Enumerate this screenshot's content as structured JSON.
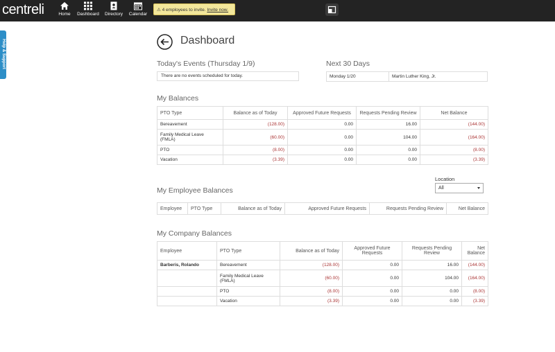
{
  "nav": {
    "logo": "centreli",
    "items": [
      "Home",
      "Dashboard",
      "Directory",
      "Calendar"
    ]
  },
  "notice": {
    "text": "4 employees to invite.",
    "link": "Invite now."
  },
  "side_tab": "Help & Support",
  "page_title": "Dashboard",
  "todays_events": {
    "title": "Today's Events (Thursday 1/9)",
    "message": "There are no events scheduled for today."
  },
  "next_30_days": {
    "title": "Next 30 Days",
    "rows": [
      [
        "Monday 1/20",
        "Martin Luther King, Jr."
      ]
    ]
  },
  "my_balances": {
    "title": "My Balances",
    "columns": [
      "PTO Type",
      "Balance as of Today",
      "Approved Future Requests",
      "Requests Pending Review",
      "Net Balance"
    ],
    "rows": [
      [
        "Bereavement",
        "(128.00)",
        "0.00",
        "16.00",
        "(144.00)"
      ],
      [
        "Family Medical Leave (FMLA)",
        "(60.00)",
        "0.00",
        "104.00",
        "(164.00)"
      ],
      [
        "PTO",
        "(8.00)",
        "0.00",
        "0.00",
        "(8.00)"
      ],
      [
        "Vacation",
        "(3.39)",
        "0.00",
        "0.00",
        "(3.39)"
      ]
    ]
  },
  "my_employee_balances": {
    "title": "My Employee Balances",
    "location_label": "Location",
    "location_value": "All",
    "columns": [
      "Employee",
      "PTO Type",
      "Balance as of Today",
      "Approved Future Requests",
      "Requests Pending Review",
      "Net Balance"
    ]
  },
  "my_company_balances": {
    "title": "My Company Balances",
    "columns": [
      "Employee",
      "PTO Type",
      "Balance as of Today",
      "Approved Future Requests",
      "Requests Pending Review",
      "Net Balance"
    ],
    "employees": [
      {
        "name": "Barberis, Rolando",
        "rows": [
          [
            "Bereavement",
            "(128.00)",
            "0.00",
            "16.00",
            "(144.00)"
          ],
          [
            "Family Medical Leave (FMLA)",
            "(60.00)",
            "0.00",
            "104.00",
            "(164.00)"
          ],
          [
            "PTO",
            "(8.00)",
            "0.00",
            "0.00",
            "(8.00)"
          ],
          [
            "Vacation",
            "(3.39)",
            "0.00",
            "0.00",
            "(3.39)"
          ]
        ]
      }
    ]
  }
}
